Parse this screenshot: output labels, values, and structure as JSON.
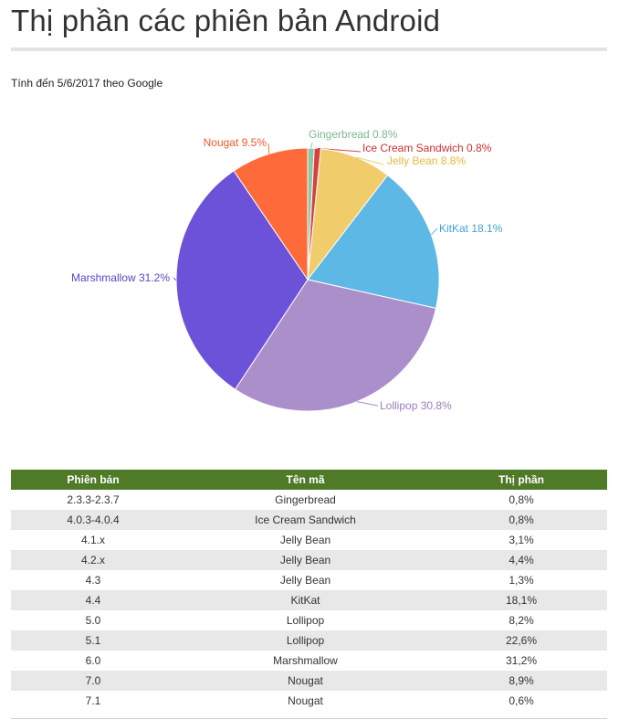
{
  "title": "Thị phần các phiên bản Android",
  "subtitle": "Tính đến 5/6/2017 theo Google",
  "chart_data": {
    "type": "pie",
    "title": "",
    "slices": [
      {
        "name": "Gingerbread",
        "value": 0.8,
        "label": "Gingerbread 0.8%",
        "color": "#8dc6a0",
        "label_color": "#7fb890"
      },
      {
        "name": "Ice Cream Sandwich",
        "value": 0.8,
        "label": "Ice Cream Sandwich 0.8%",
        "color": "#d83f3f",
        "label_color": "#d03030"
      },
      {
        "name": "Jelly Bean",
        "value": 8.8,
        "label": "Jelly Bean 8.8%",
        "color": "#f0cc6b",
        "label_color": "#e8b840"
      },
      {
        "name": "KitKat",
        "value": 18.1,
        "label": "KitKat 18.1%",
        "color": "#5eb8e6",
        "label_color": "#3ea2d6"
      },
      {
        "name": "Lollipop",
        "value": 30.8,
        "label": "Lollipop 30.8%",
        "color": "#ab8fca",
        "label_color": "#9a7ec0"
      },
      {
        "name": "Marshmallow",
        "value": 31.2,
        "label": "Marshmallow 31.2%",
        "color": "#6c52d9",
        "label_color": "#5b45c8"
      },
      {
        "name": "Nougat",
        "value": 9.5,
        "label": "Nougat 9.5%",
        "color": "#ff6a3a",
        "label_color": "#f05a28"
      }
    ]
  },
  "table": {
    "header_color": "#4f7a28",
    "headers": [
      "Phiên bản",
      "Tên mã",
      "Thị phần"
    ],
    "rows": [
      [
        "2.3.3-2.3.7",
        "Gingerbread",
        "0,8%"
      ],
      [
        "4.0.3-4.0.4",
        "Ice Cream Sandwich",
        "0,8%"
      ],
      [
        "4.1.x",
        "Jelly Bean",
        "3,1%"
      ],
      [
        "4.2.x",
        "Jelly Bean",
        "4,4%"
      ],
      [
        "4.3",
        "Jelly Bean",
        "1,3%"
      ],
      [
        "4.4",
        "KitKat",
        "18,1%"
      ],
      [
        "5.0",
        "Lollipop",
        "8,2%"
      ],
      [
        "5.1",
        "Lollipop",
        "22,6%"
      ],
      [
        "6.0",
        "Marshmallow",
        "31,2%"
      ],
      [
        "7.0",
        "Nougat",
        "8,9%"
      ],
      [
        "7.1",
        "Nougat",
        "0,6%"
      ]
    ]
  }
}
